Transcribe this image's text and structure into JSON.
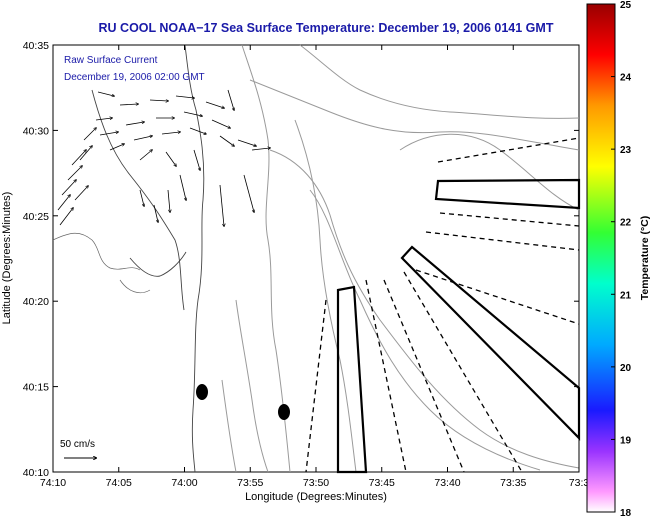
{
  "title": "RU COOL  NOAA−17  Sea Surface Temperature:  December 19, 2006 0141 GMT",
  "annotation": {
    "line1": "Raw Surface Current",
    "line2": "December 19, 2006 02:00 GMT"
  },
  "scale_label": "50 cm/s",
  "map": {
    "xlabel": "Longitude (Degrees:Minutes)",
    "ylabel": "Latitude (Degrees:Minutes)",
    "x_ticks": [
      "74:10",
      "74:05",
      "74:00",
      "73:55",
      "73:50",
      "73:45",
      "73:40",
      "73:35",
      "73:3"
    ],
    "y_ticks": [
      "40:35",
      "40:30",
      "40:25",
      "40:20",
      "40:15",
      "40:10"
    ],
    "lon_range": [
      "74:10 W",
      "73:30 W"
    ],
    "lat_range": [
      "40:10 N",
      "40:35 N"
    ]
  },
  "colorbar": {
    "label": "Temperature (°C)",
    "ticks": [
      "25",
      "24",
      "23",
      "22",
      "21",
      "20",
      "19",
      "18"
    ],
    "range": [
      18,
      25
    ],
    "colors": [
      "#ffffff",
      "#cc33cc",
      "#0000ff",
      "#00ccff",
      "#00ff99",
      "#66ff00",
      "#ffff00",
      "#ff9900",
      "#ff0000",
      "#990000"
    ]
  },
  "colors": {
    "title": "#1a1aa8",
    "land": "#ffffff",
    "contour": "#9a9a9a",
    "coast": "#333333"
  }
}
